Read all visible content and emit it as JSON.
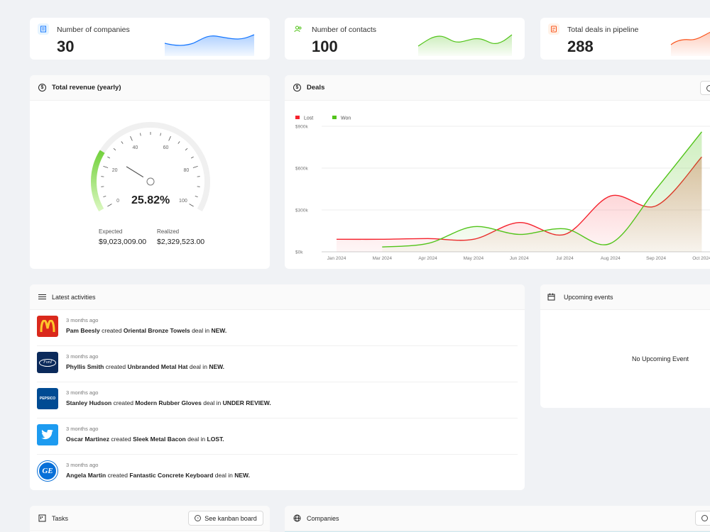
{
  "kpis": [
    {
      "label": "Number of companies",
      "value": "30",
      "icon": "building-icon",
      "color": "#1677ff"
    },
    {
      "label": "Number of contacts",
      "value": "100",
      "icon": "team-icon",
      "color": "#52c41a"
    },
    {
      "label": "Total deals in pipeline",
      "value": "288",
      "icon": "audit-icon",
      "color": "#fa541c"
    }
  ],
  "revenue": {
    "title": "Total revenue (yearly)",
    "percent_text": "25.82%",
    "percent": 25.82,
    "gauge_ticks": [
      "0",
      "20",
      "40",
      "60",
      "80",
      "100"
    ],
    "expected_label": "Expected",
    "expected_value": "$9,023,009.00",
    "realized_label": "Realized",
    "realized_value": "$2,329,523.00"
  },
  "deals": {
    "title": "Deals",
    "legend": [
      {
        "name": "Lost",
        "color": "#f5222d"
      },
      {
        "name": "Won",
        "color": "#52c41a"
      }
    ],
    "chart_data": {
      "type": "area",
      "categories": [
        "Jan 2024",
        "Mar 2024",
        "Apr 2024",
        "May 2024",
        "Jun 2024",
        "Jul 2024",
        "Aug 2024",
        "Sep 2024",
        "Oct 2024"
      ],
      "y_ticks": [
        "$0k",
        "$300k",
        "$600k",
        "$900k"
      ],
      "ylim": [
        0,
        900
      ],
      "series": [
        {
          "name": "Lost",
          "color": "#f5222d",
          "x": [
            0,
            1,
            2,
            3,
            4,
            5,
            6,
            7,
            8
          ],
          "values": [
            90,
            90,
            95,
            90,
            210,
            125,
            400,
            330,
            680
          ]
        },
        {
          "name": "Won",
          "color": "#52c41a",
          "x": [
            1,
            2,
            3,
            4,
            5,
            6,
            7,
            8
          ],
          "values": [
            35,
            60,
            180,
            125,
            165,
            60,
            450,
            860
          ]
        }
      ]
    }
  },
  "activities": {
    "title": "Latest activities",
    "items": [
      {
        "time": "3 months ago",
        "name": "Pam Beesly",
        "verb": "created",
        "deal": "Oriental Bronze Towels",
        "mid": "deal in",
        "stage": "NEW."
      },
      {
        "time": "3 months ago",
        "name": "Phyllis Smith",
        "verb": "created",
        "deal": "Unbranded Metal Hat",
        "mid": "deal in",
        "stage": "NEW."
      },
      {
        "time": "3 months ago",
        "name": "Stanley Hudson",
        "verb": "created",
        "deal": "Modern Rubber Gloves",
        "mid": "deal in",
        "stage": "UNDER REVIEW."
      },
      {
        "time": "3 months ago",
        "name": "Oscar Martinez",
        "verb": "created",
        "deal": "Sleek Metal Bacon",
        "mid": "deal in",
        "stage": "LOST."
      },
      {
        "time": "3 months ago",
        "name": "Angela Martin",
        "verb": "created",
        "deal": "Fantastic Concrete Keyboard",
        "mid": "deal in",
        "stage": "NEW."
      }
    ],
    "logo_texts": {
      "ford": "Ford",
      "pepsico": "PEPSICO",
      "ge": "GE"
    }
  },
  "events": {
    "title": "Upcoming events",
    "empty_text": "No Upcoming Event"
  },
  "tasks": {
    "title": "Tasks",
    "button": "See kanban board"
  },
  "companies": {
    "title": "Companies"
  }
}
